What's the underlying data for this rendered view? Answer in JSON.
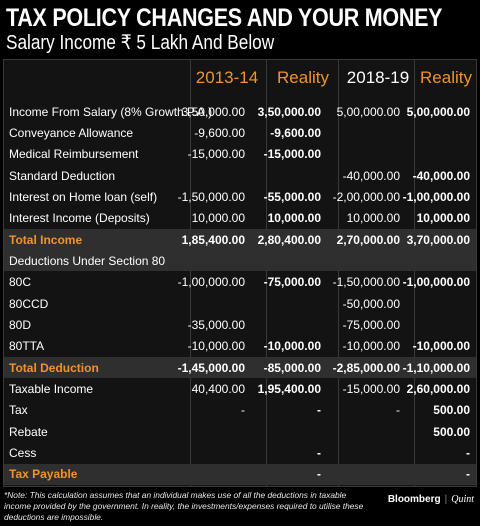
{
  "title": "TAX POLICY CHANGES AND YOUR MONEY",
  "subtitle": "Salary Income ₹ 5 Lakh And Below",
  "columns": [
    "2013-14",
    "Reality",
    "2018-19",
    "Reality"
  ],
  "rows": [
    {
      "label": "Income From Salary (8% Growth P.A.)",
      "values": [
        "3,50,000.00",
        "3,50,000.00",
        "5,00,000.00",
        "5,00,000.00"
      ]
    },
    {
      "label": "Conveyance Allowance",
      "values": [
        "-9,600.00",
        "-9,600.00",
        "",
        ""
      ]
    },
    {
      "label": "Medical Reimbursement",
      "values": [
        "-15,000.00",
        "-15,000.00",
        "",
        ""
      ]
    },
    {
      "label": "Standard Deduction",
      "values": [
        "",
        "",
        "-40,000.00",
        "-40,000.00"
      ]
    },
    {
      "label": "Interest on Home loan (self)",
      "values": [
        "-1,50,000.00",
        "-55,000.00",
        "-2,00,000.00",
        "-1,00,000.00"
      ]
    },
    {
      "label": "Interest Income (Deposits)",
      "values": [
        "10,000.00",
        "10,000.00",
        "10,000.00",
        "10,000.00"
      ]
    },
    {
      "label": "Total Income",
      "values": [
        "1,85,400.00",
        "2,80,400.00",
        "2,70,000.00",
        "3,70,000.00"
      ],
      "shaded": true
    },
    {
      "label": "Deductions Under Section 80",
      "values": [
        "",
        "",
        "",
        ""
      ],
      "section": true
    },
    {
      "label": "80C",
      "values": [
        "-1,00,000.00",
        "-75,000.00",
        "-1,50,000.00",
        "-1,00,000.00"
      ]
    },
    {
      "label": "80CCD",
      "values": [
        "",
        "",
        "-50,000.00",
        ""
      ]
    },
    {
      "label": "80D",
      "values": [
        "-35,000.00",
        "",
        "-75,000.00",
        ""
      ]
    },
    {
      "label": "80TTA",
      "values": [
        "-10,000.00",
        "-10,000.00",
        "-10,000.00",
        "-10,000.00"
      ]
    },
    {
      "label": "Total Deduction",
      "values": [
        "-1,45,000.00",
        "-85,000.00",
        "-2,85,000.00",
        "-1,10,000.00"
      ],
      "shaded": true
    },
    {
      "label": "Taxable Income",
      "values": [
        "40,400.00",
        "1,95,400.00",
        "-15,000.00",
        "2,60,000.00"
      ]
    },
    {
      "label": "Tax",
      "values": [
        "-",
        "-",
        "-",
        "500.00"
      ]
    },
    {
      "label": "Rebate",
      "values": [
        "",
        "",
        "",
        "500.00"
      ]
    },
    {
      "label": "Cess",
      "values": [
        "",
        "-",
        "",
        "-"
      ]
    },
    {
      "label": "Tax Payable",
      "values": [
        "",
        "-",
        "",
        "-"
      ],
      "shaded": true
    }
  ],
  "note": "*Note: This calculation assumes that an individual makes use of all the deductions in taxable income provided by the government. In reality, the investments/expenses required to utilise these deductions are impossible.",
  "brand": {
    "name1": "Bloomberg",
    "separator": "|",
    "name2": "Quint"
  },
  "colors": {
    "accent": "#f2932a",
    "background": "#000000",
    "table_bg": "#131313",
    "shaded_row": "#2f2f2f"
  }
}
